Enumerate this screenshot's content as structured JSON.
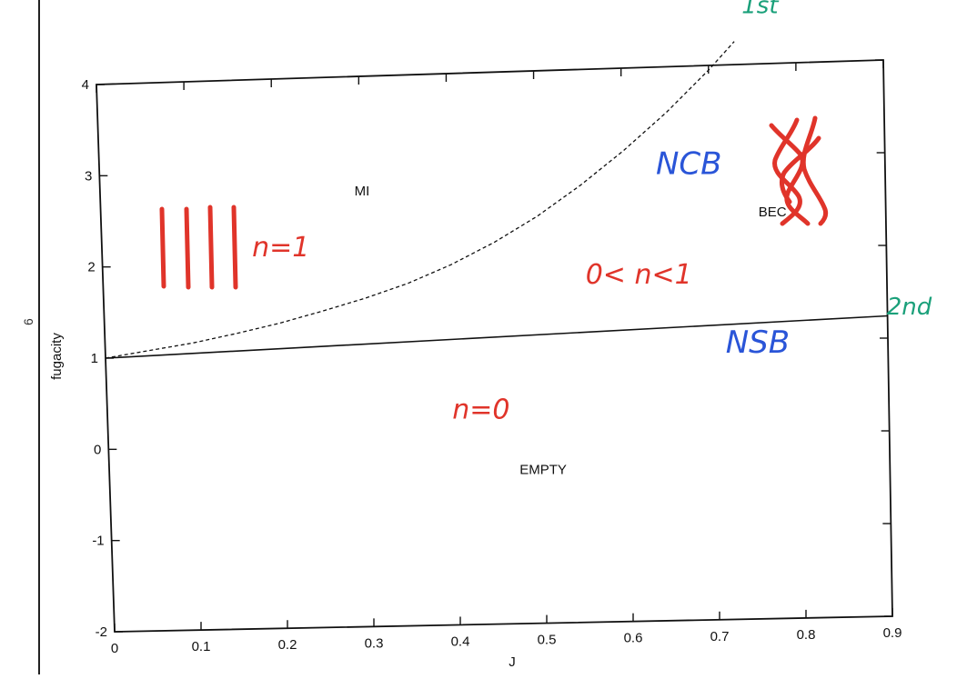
{
  "page": {
    "side_mark": "6"
  },
  "chart_data": {
    "type": "line",
    "xlabel": "J",
    "ylabel": "fugacity",
    "xlim": [
      0,
      0.9
    ],
    "ylim": [
      -2,
      4
    ],
    "x_ticks": [
      "0",
      "0.1",
      "0.2",
      "0.3",
      "0.4",
      "0.5",
      "0.6",
      "0.7",
      "0.8",
      "0.9"
    ],
    "y_ticks": [
      "-2",
      "-1",
      "0",
      "1",
      "2",
      "3",
      "4"
    ],
    "grid": false,
    "series": [
      {
        "style": "solid",
        "x": [
          0,
          0.9
        ],
        "y": [
          1.0,
          1.24
        ]
      },
      {
        "style": "dashed",
        "x": [
          0,
          0.05,
          0.1,
          0.15,
          0.2,
          0.25,
          0.3,
          0.35,
          0.4,
          0.45,
          0.5,
          0.55,
          0.6,
          0.65,
          0.7,
          0.73
        ],
        "y": [
          1.0,
          1.07,
          1.14,
          1.23,
          1.33,
          1.45,
          1.58,
          1.73,
          1.92,
          2.15,
          2.42,
          2.74,
          3.1,
          3.5,
          3.95,
          4.25
        ]
      }
    ],
    "region_labels": [
      {
        "text": "MI",
        "x": 0.3,
        "y": 2.7
      },
      {
        "text": "BEC",
        "x": 0.77,
        "y": 2.35
      },
      {
        "text": "EMPTY",
        "x": 0.5,
        "y": -0.38
      }
    ],
    "annotations": [
      {
        "text": "1st",
        "color": "#1aa07a",
        "x": 0.76,
        "y": 4.55
      },
      {
        "text": "2nd",
        "color": "#1aa07a",
        "x": 0.925,
        "y": 1.25
      },
      {
        "text": "NCB",
        "color": "#2a55d8",
        "x": 0.675,
        "y": 2.83
      },
      {
        "text": "NSB",
        "color": "#2a55d8",
        "x": 0.75,
        "y": 0.88
      },
      {
        "text": "n=1",
        "color": "#e0342a",
        "x": 0.205,
        "y": 2.06
      },
      {
        "text": "0< n<1",
        "color": "#e0342a",
        "x": 0.615,
        "y": 1.66
      },
      {
        "text": "n=0",
        "color": "#e0342a",
        "x": 0.43,
        "y": 0.24
      }
    ],
    "colors": {
      "annotation_green": "#1aa07a",
      "annotation_blue": "#2a55d8",
      "annotation_red": "#e0342a"
    }
  }
}
